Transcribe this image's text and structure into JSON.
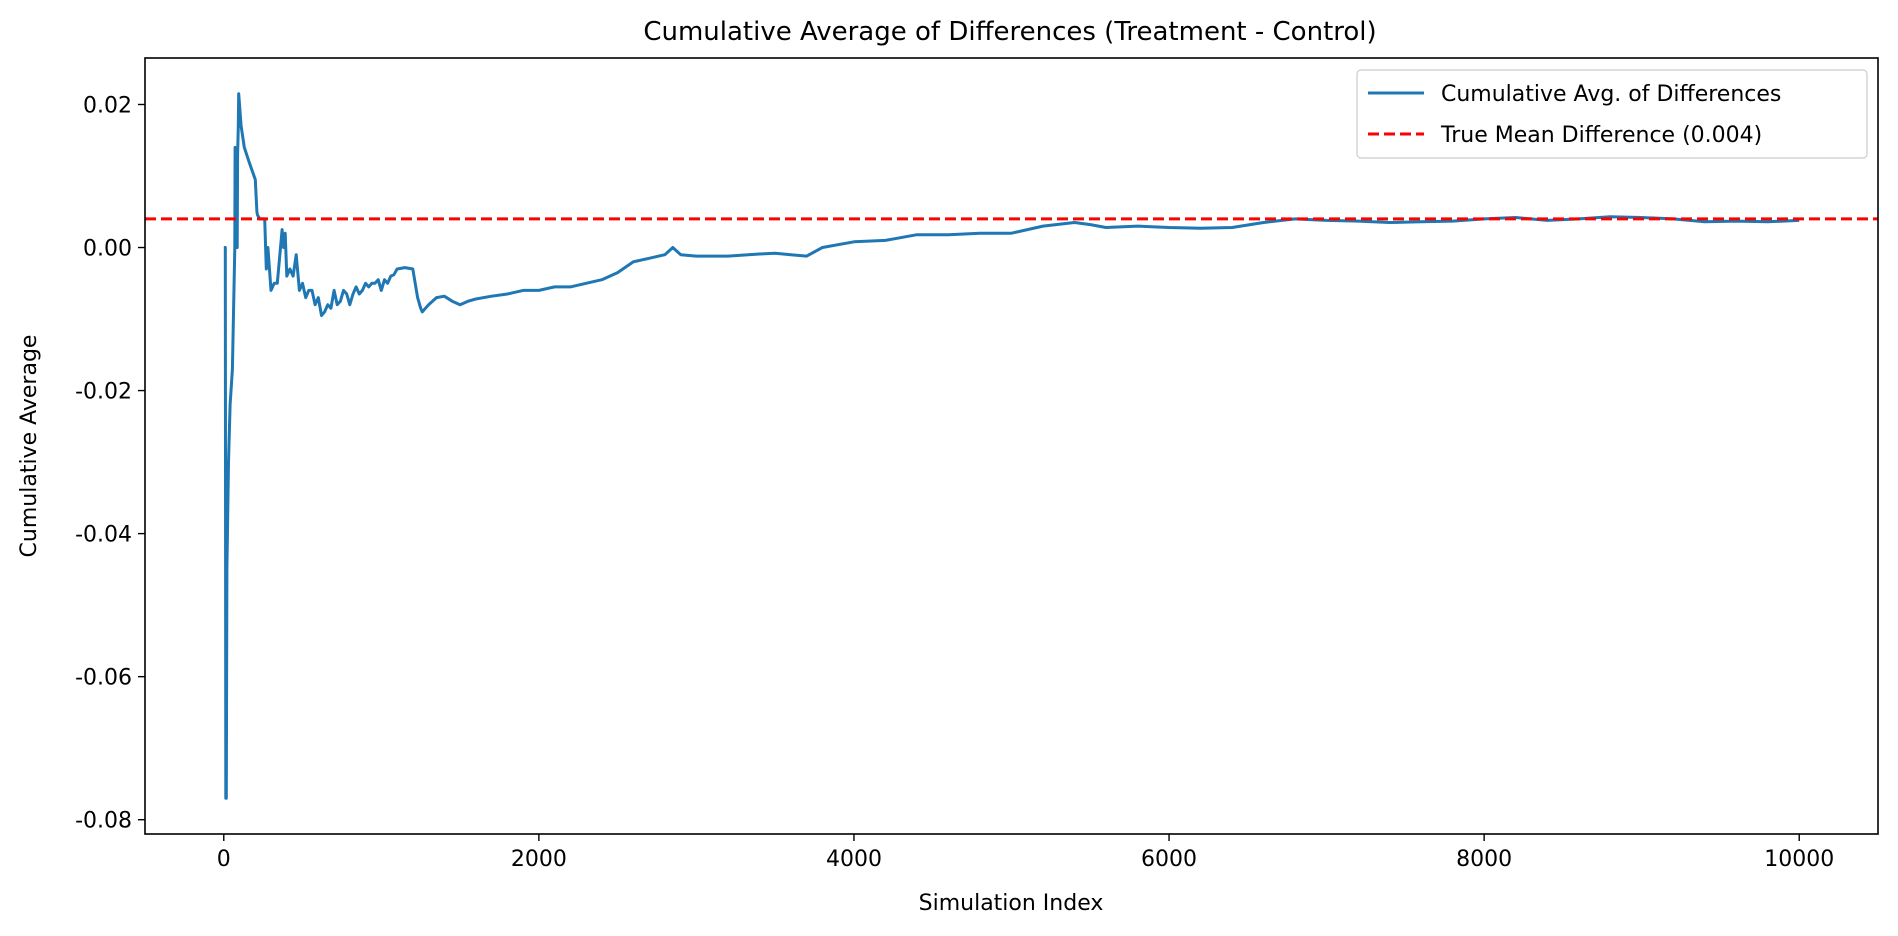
{
  "chart_data": {
    "type": "line",
    "title": "Cumulative Average of Differences (Treatment - Control)",
    "xlabel": "Simulation Index",
    "ylabel": "Cumulative Average",
    "xlim": [
      -500,
      10500
    ],
    "ylim": [
      -0.082,
      0.0265
    ],
    "xticks": [
      0,
      2000,
      4000,
      6000,
      8000,
      10000
    ],
    "xtick_labels": [
      "0",
      "2000",
      "4000",
      "6000",
      "8000",
      "10000"
    ],
    "yticks": [
      0.02,
      0.0,
      -0.02,
      -0.04,
      -0.06,
      -0.08
    ],
    "ytick_labels": [
      "0.02",
      "0.00",
      "-0.02",
      "-0.04",
      "-0.06",
      "-0.08"
    ],
    "grid": false,
    "legend_position": "top-right",
    "series": [
      {
        "name": "Cumulative Avg. of Differences",
        "color": "#1f77b4",
        "style": "solid",
        "x": [
          0,
          10,
          13,
          16,
          20,
          30,
          40,
          55,
          70,
          72,
          75,
          78,
          80,
          85,
          88,
          92,
          95,
          100,
          110,
          130,
          160,
          200,
          210,
          215,
          230,
          260,
          270,
          280,
          300,
          320,
          340,
          360,
          370,
          380,
          390,
          400,
          420,
          440,
          460,
          480,
          500,
          520,
          540,
          560,
          580,
          600,
          620,
          640,
          660,
          680,
          700,
          720,
          740,
          760,
          780,
          800,
          820,
          840,
          860,
          880,
          900,
          920,
          940,
          960,
          980,
          1000,
          1020,
          1040,
          1060,
          1080,
          1100,
          1150,
          1200,
          1230,
          1250,
          1260,
          1280,
          1300,
          1350,
          1400,
          1450,
          1500,
          1550,
          1600,
          1700,
          1800,
          1900,
          2000,
          2100,
          2200,
          2300,
          2400,
          2500,
          2600,
          2700,
          2800,
          2850,
          2900,
          3000,
          3200,
          3400,
          3500,
          3600,
          3700,
          3800,
          4000,
          4200,
          4400,
          4600,
          4800,
          5000,
          5200,
          5400,
          5500,
          5600,
          5800,
          6000,
          6200,
          6400,
          6600,
          6800,
          7000,
          7200,
          7400,
          7600,
          7800,
          8000,
          8200,
          8400,
          8600,
          8800,
          9000,
          9200,
          9400,
          9600,
          9800,
          10000
        ],
        "y": [
          0.0,
          0.0,
          -0.077,
          -0.077,
          -0.045,
          -0.03,
          -0.022,
          -0.017,
          0.0,
          0.014,
          0.011,
          0.013,
          0.0,
          0.0,
          0.013,
          0.017,
          0.0215,
          0.02,
          0.017,
          0.014,
          0.012,
          0.0095,
          0.005,
          0.0045,
          0.004,
          0.004,
          -0.003,
          0.0,
          -0.006,
          -0.005,
          -0.005,
          0.0,
          0.0025,
          0.0,
          0.002,
          -0.004,
          -0.003,
          -0.004,
          -0.001,
          -0.006,
          -0.005,
          -0.007,
          -0.006,
          -0.006,
          -0.008,
          -0.007,
          -0.0095,
          -0.009,
          -0.008,
          -0.0085,
          -0.006,
          -0.008,
          -0.0075,
          -0.006,
          -0.0065,
          -0.008,
          -0.0065,
          -0.0055,
          -0.0065,
          -0.006,
          -0.005,
          -0.0055,
          -0.005,
          -0.005,
          -0.0045,
          -0.006,
          -0.0045,
          -0.005,
          -0.004,
          -0.0038,
          -0.003,
          -0.0028,
          -0.003,
          -0.007,
          -0.0085,
          -0.009,
          -0.0085,
          -0.008,
          -0.007,
          -0.0068,
          -0.0075,
          -0.008,
          -0.0075,
          -0.0072,
          -0.0068,
          -0.0065,
          -0.006,
          -0.006,
          -0.0055,
          -0.0055,
          -0.005,
          -0.0045,
          -0.0035,
          -0.002,
          -0.0015,
          -0.001,
          0.0,
          -0.001,
          -0.0012,
          -0.0012,
          -0.0009,
          -0.0008,
          -0.001,
          -0.0012,
          0.0,
          0.0008,
          0.001,
          0.0018,
          0.0018,
          0.002,
          0.002,
          0.003,
          0.0035,
          0.0032,
          0.0028,
          0.003,
          0.0028,
          0.0027,
          0.0028,
          0.0035,
          0.004,
          0.0038,
          0.0037,
          0.0035,
          0.0036,
          0.0037,
          0.004,
          0.0042,
          0.0038,
          0.004,
          0.0043,
          0.0042,
          0.004,
          0.0036,
          0.0037,
          0.0036,
          0.0038
        ]
      },
      {
        "name": "True Mean Difference (0.004)",
        "color": "#ff0000",
        "style": "dashed",
        "hline": 0.004
      }
    ]
  }
}
